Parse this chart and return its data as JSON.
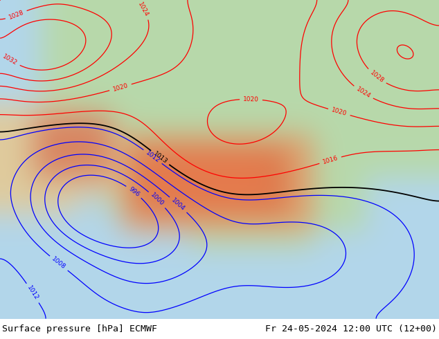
{
  "title_left": "Surface pressure [hPa] ECMWF",
  "title_right": "Fr 24-05-2024 12:00 UTC (12+00)",
  "bg_color": "#ffffff",
  "footer_fontsize": 9.5,
  "fig_width": 6.34,
  "fig_height": 4.9,
  "dpi": 100,
  "map_bg": "#c8dff0",
  "land_green": [
    0.72,
    0.85,
    0.67
  ],
  "land_green2": [
    0.65,
    0.8,
    0.6
  ],
  "tibet_brown": [
    0.88,
    0.62,
    0.42
  ],
  "tibet_dark": [
    0.85,
    0.45,
    0.28
  ],
  "desert_tan": [
    0.88,
    0.8,
    0.62
  ],
  "levels_black": [
    1013
  ],
  "levels_red": [
    1016,
    1020,
    1024,
    1028,
    1032
  ],
  "levels_blue": [
    996,
    1000,
    1004,
    1008,
    1012
  ],
  "lw_main": 1.3,
  "lw_other": 0.9,
  "label_fontsize": 6.5
}
